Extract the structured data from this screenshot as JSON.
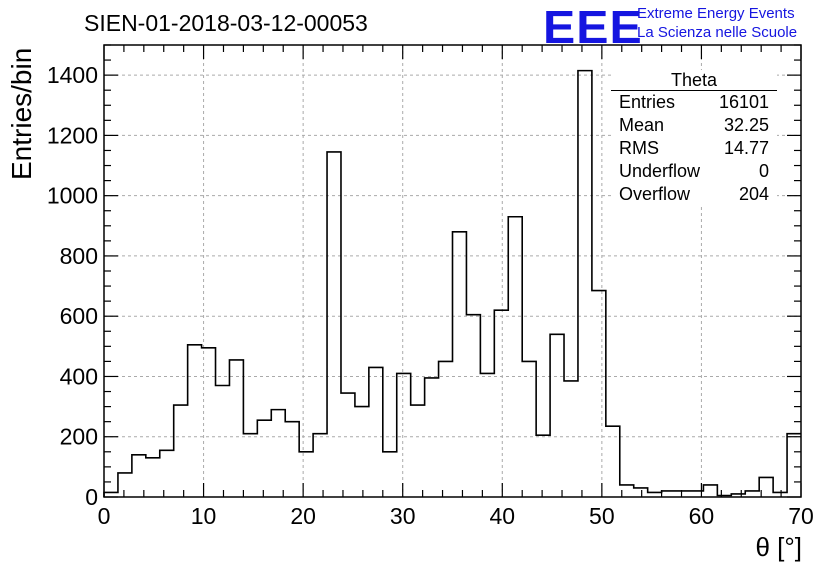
{
  "header": {
    "title": "SIEN-01-2018-03-12-00053",
    "logo": "EEE",
    "logo_line1": "Extreme Energy Events",
    "logo_line2": "La Scienza nelle Scuole",
    "accent_color": "#1515e0"
  },
  "stats": {
    "title": "Theta",
    "rows": [
      {
        "label": "Entries",
        "value": "16101"
      },
      {
        "label": "Mean",
        "value": "32.25"
      },
      {
        "label": "RMS",
        "value": "14.77"
      },
      {
        "label": "Underflow",
        "value": "0"
      },
      {
        "label": "Overflow",
        "value": "204"
      }
    ]
  },
  "chart_data": {
    "type": "bar",
    "title": "SIEN-01-2018-03-12-00053",
    "xlabel": "θ [°]",
    "ylabel": "Entries/bin",
    "xlim": [
      0,
      70
    ],
    "ylim": [
      0,
      1500
    ],
    "bin_width": 1.4,
    "xticks": [
      0,
      10,
      20,
      30,
      40,
      50,
      60,
      70
    ],
    "yticks": [
      0,
      200,
      400,
      600,
      800,
      1000,
      1200,
      1400
    ],
    "grid": true,
    "values": [
      15,
      80,
      140,
      130,
      155,
      305,
      505,
      495,
      370,
      455,
      210,
      255,
      290,
      250,
      150,
      210,
      1145,
      345,
      300,
      430,
      150,
      410,
      305,
      395,
      450,
      880,
      605,
      410,
      620,
      930,
      450,
      205,
      540,
      385,
      1415,
      685,
      235,
      40,
      30,
      15,
      20,
      20,
      20,
      40,
      5,
      10,
      20,
      65,
      15,
      210
    ]
  }
}
